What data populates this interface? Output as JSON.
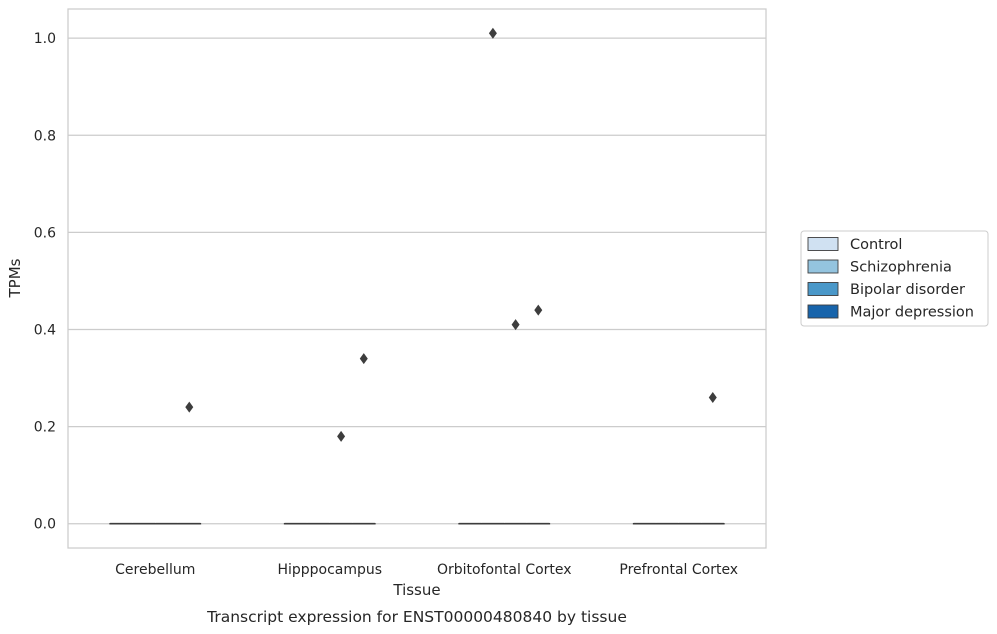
{
  "chart_data": {
    "type": "box",
    "xlabel": "Tissue",
    "ylabel": "TPMs",
    "caption": "Transcript expression for ENST00000480840 by tissue",
    "categories": [
      "Cerebellum",
      "Hipppocampus",
      "Orbitofontal Cortex",
      "Prefrontal Cortex"
    ],
    "ylim": [
      -0.05,
      1.06
    ],
    "yticks": [
      0.0,
      0.2,
      0.4,
      0.6,
      0.8,
      1.0
    ],
    "ytick_labels": [
      "0.0",
      "0.2",
      "0.4",
      "0.6",
      "0.8",
      "1.0"
    ],
    "grid": "horizontal",
    "legend_position": "right",
    "series": [
      {
        "name": "Control",
        "color": "#d0e1f2",
        "boxes": [
          {
            "median": 0,
            "q1": 0,
            "q3": 0
          },
          {
            "median": 0,
            "q1": 0,
            "q3": 0
          },
          {
            "median": 0,
            "q1": 0,
            "q3": 0
          },
          {
            "median": 0,
            "q1": 0,
            "q3": 0
          }
        ],
        "outliers": [
          [],
          [],
          [],
          []
        ]
      },
      {
        "name": "Schizophrenia",
        "color": "#94c4df",
        "boxes": [
          {
            "median": 0,
            "q1": 0,
            "q3": 0
          },
          {
            "median": 0,
            "q1": 0,
            "q3": 0
          },
          {
            "median": 0,
            "q1": 0,
            "q3": 0
          },
          {
            "median": 0,
            "q1": 0,
            "q3": 0
          }
        ],
        "outliers": [
          [],
          [],
          [
            1.01
          ],
          []
        ]
      },
      {
        "name": "Bipolar disorder",
        "color": "#4a98c9",
        "boxes": [
          {
            "median": 0,
            "q1": 0,
            "q3": 0
          },
          {
            "median": 0,
            "q1": 0,
            "q3": 0
          },
          {
            "median": 0,
            "q1": 0,
            "q3": 0
          },
          {
            "median": 0,
            "q1": 0,
            "q3": 0
          }
        ],
        "outliers": [
          [],
          [
            0.18
          ],
          [
            0.41
          ],
          []
        ]
      },
      {
        "name": "Major depression",
        "color": "#1764ab",
        "boxes": [
          {
            "median": 0,
            "q1": 0,
            "q3": 0
          },
          {
            "median": 0,
            "q1": 0,
            "q3": 0
          },
          {
            "median": 0,
            "q1": 0,
            "q3": 0
          },
          {
            "median": 0,
            "q1": 0,
            "q3": 0
          }
        ],
        "outliers": [
          [
            0.24
          ],
          [
            0.34
          ],
          [
            0.44
          ],
          [
            0.26
          ]
        ]
      }
    ]
  }
}
